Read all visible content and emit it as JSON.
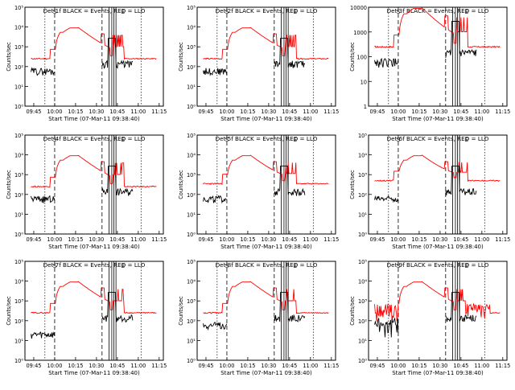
{
  "figure": {
    "xlabel": "Start Time (07-Mar-11 09:38:40)",
    "ylabel": "Counts/sec",
    "x_ticks": [
      "09:45",
      "10:00",
      "10:15",
      "10:30",
      "10:45",
      "11:00",
      "11:15"
    ],
    "y_ticks_default": [
      "10⁰",
      "10¹",
      "10²",
      "10³",
      "10⁴",
      "10⁵"
    ],
    "y_ticks_panel3": [
      "1",
      "10",
      "100",
      "1000",
      "10000"
    ],
    "markers": [
      "S",
      "E"
    ],
    "colors": {
      "events": "#000000",
      "lld": "#ff0000",
      "axes": "#000000",
      "background": "#ffffff"
    }
  },
  "chart_data": [
    {
      "type": "line",
      "title": "Det 1f BLACK = Events, RED = LLD",
      "series": [
        {
          "name": "Events",
          "color": "#000000"
        },
        {
          "name": "LLD",
          "color": "#ff0000"
        }
      ],
      "xlim": [
        "09:38:40",
        "11:18"
      ],
      "ylim": [
        1,
        100000
      ],
      "yscale": "log",
      "lld_baseline": 250,
      "lld_peak": 9000,
      "events_baseline": 60,
      "events_post": 140
    },
    {
      "type": "line",
      "title": "Det 2f BLACK = Events, RED = LLD",
      "series": [
        {
          "name": "Events",
          "color": "#000000"
        },
        {
          "name": "LLD",
          "color": "#ff0000"
        }
      ],
      "xlim": [
        "09:38:40",
        "11:18"
      ],
      "ylim": [
        1,
        100000
      ],
      "yscale": "log",
      "lld_baseline": 250,
      "lld_peak": 9000,
      "events_baseline": 60,
      "events_post": 140
    },
    {
      "type": "line",
      "title": "Det 3f BLACK = Events, RED = LLD",
      "series": [
        {
          "name": "Events",
          "color": "#000000"
        },
        {
          "name": "LLD",
          "color": "#ff0000"
        }
      ],
      "xlim": [
        "09:38:40",
        "11:18"
      ],
      "ylim": [
        1,
        10000
      ],
      "yscale": "log",
      "lld_baseline": 250,
      "lld_peak": 9000,
      "events_baseline": 60,
      "events_post": 140
    },
    {
      "type": "line",
      "title": "Det 4f BLACK = Events, RED = LLD",
      "series": [
        {
          "name": "Events",
          "color": "#000000"
        },
        {
          "name": "LLD",
          "color": "#ff0000"
        }
      ],
      "xlim": [
        "09:38:40",
        "11:18"
      ],
      "ylim": [
        1,
        100000
      ],
      "yscale": "log",
      "lld_baseline": 250,
      "lld_peak": 9000,
      "events_baseline": 60,
      "events_post": 140
    },
    {
      "type": "line",
      "title": "Det 5f BLACK = Events, RED = LLD",
      "series": [
        {
          "name": "Events",
          "color": "#000000"
        },
        {
          "name": "LLD",
          "color": "#ff0000"
        }
      ],
      "xlim": [
        "09:38:40",
        "11:18"
      ],
      "ylim": [
        1,
        100000
      ],
      "yscale": "log",
      "lld_baseline": 350,
      "lld_peak": 9000,
      "events_baseline": 60,
      "events_post": 140
    },
    {
      "type": "line",
      "title": "Det 6f BLACK = Events, RED = LLD",
      "series": [
        {
          "name": "Events",
          "color": "#000000"
        },
        {
          "name": "LLD",
          "color": "#ff0000"
        }
      ],
      "xlim": [
        "09:38:40",
        "11:18"
      ],
      "ylim": [
        1,
        100000
      ],
      "yscale": "log",
      "lld_baseline": 500,
      "lld_peak": 9000,
      "events_baseline": 60,
      "events_post": 140
    },
    {
      "type": "line",
      "title": "Det 7f BLACK = Events, RED = LLD",
      "series": [
        {
          "name": "Events",
          "color": "#000000"
        },
        {
          "name": "LLD",
          "color": "#ff0000"
        }
      ],
      "xlim": [
        "09:38:40",
        "11:18"
      ],
      "ylim": [
        1,
        100000
      ],
      "yscale": "log",
      "lld_baseline": 250,
      "lld_peak": 9000,
      "events_baseline": 20,
      "events_post": 140
    },
    {
      "type": "line",
      "title": "Det 8f BLACK = Events, RED = LLD",
      "series": [
        {
          "name": "Events",
          "color": "#000000"
        },
        {
          "name": "LLD",
          "color": "#ff0000"
        }
      ],
      "xlim": [
        "09:38:40",
        "11:18"
      ],
      "ylim": [
        1,
        100000
      ],
      "yscale": "log",
      "lld_baseline": 250,
      "lld_peak": 9000,
      "events_baseline": 60,
      "events_post": 140
    },
    {
      "type": "line",
      "title": "Det 9f BLACK = Events, RED = LLD",
      "series": [
        {
          "name": "Events",
          "color": "#000000"
        },
        {
          "name": "LLD",
          "color": "#ff0000"
        }
      ],
      "xlim": [
        "09:38:40",
        "11:18"
      ],
      "ylim": [
        1,
        100000
      ],
      "yscale": "log",
      "lld_baseline": 250,
      "lld_peak": 9000,
      "events_baseline": 60,
      "events_post": 140
    }
  ]
}
